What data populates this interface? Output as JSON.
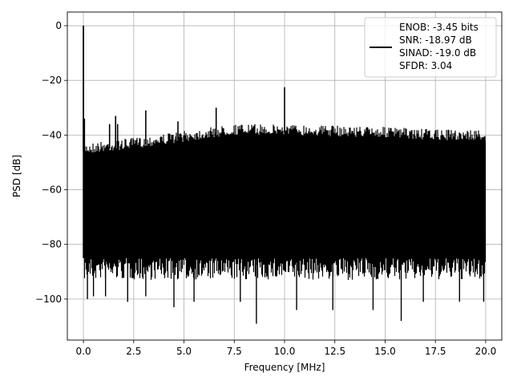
{
  "chart_data": {
    "type": "line",
    "xlabel": "Frequency [MHz]",
    "ylabel": "PSD [dB]",
    "xlim": [
      -0.8,
      20.8
    ],
    "ylim": [
      -115,
      5
    ],
    "xticks": [
      0.0,
      2.5,
      5.0,
      7.5,
      10.0,
      12.5,
      15.0,
      17.5,
      20.0
    ],
    "xtick_labels": [
      "0.0",
      "2.5",
      "5.0",
      "7.5",
      "10.0",
      "12.5",
      "15.0",
      "17.5",
      "20.0"
    ],
    "yticks": [
      0,
      -20,
      -40,
      -60,
      -80,
      -100
    ],
    "ytick_labels": [
      "0",
      "−20",
      "−40",
      "−60",
      "−80",
      "−100"
    ],
    "grid": true,
    "legend_position": "top-right",
    "legend_lines": [
      "ENOB: -3.45 bits",
      "SNR: -18.97 dB",
      "SINAD: -19.0 dB",
      "SFDR: 3.04"
    ],
    "series": [
      {
        "color": "#000000",
        "noise_band": {
          "x_start": 0.0,
          "x_end": 20.0,
          "upper_envelope": {
            "x": [
              0.0,
              2.5,
              5.0,
              7.5,
              10.0,
              12.5,
              15.0,
              17.5,
              20.0
            ],
            "y": [
              -43,
              -41,
              -38.5,
              -36,
              -36,
              -36.5,
              -37,
              -38,
              -38
            ]
          },
          "typical_floor": -85,
          "deepest_dips": [
            {
              "x": 0.2,
              "y": -100
            },
            {
              "x": 0.5,
              "y": -99
            },
            {
              "x": 1.1,
              "y": -99
            },
            {
              "x": 2.2,
              "y": -101
            },
            {
              "x": 3.1,
              "y": -99
            },
            {
              "x": 4.5,
              "y": -103
            },
            {
              "x": 5.5,
              "y": -101
            },
            {
              "x": 7.8,
              "y": -101
            },
            {
              "x": 8.6,
              "y": -109
            },
            {
              "x": 10.6,
              "y": -104
            },
            {
              "x": 12.4,
              "y": -104
            },
            {
              "x": 14.4,
              "y": -104
            },
            {
              "x": 15.8,
              "y": -108
            },
            {
              "x": 16.9,
              "y": -101
            },
            {
              "x": 18.7,
              "y": -101
            },
            {
              "x": 19.9,
              "y": -101
            }
          ]
        },
        "peaks": [
          {
            "x": 0.0,
            "y": 0
          },
          {
            "x": 0.05,
            "y": -34
          },
          {
            "x": 1.3,
            "y": -36
          },
          {
            "x": 1.6,
            "y": -33
          },
          {
            "x": 1.7,
            "y": -36
          },
          {
            "x": 3.1,
            "y": -31
          },
          {
            "x": 4.7,
            "y": -35
          },
          {
            "x": 6.6,
            "y": -30
          },
          {
            "x": 10.0,
            "y": -22.5
          }
        ]
      }
    ]
  }
}
